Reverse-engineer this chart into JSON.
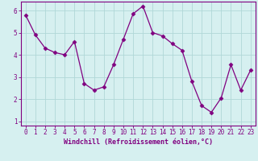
{
  "x": [
    0,
    1,
    2,
    3,
    4,
    5,
    6,
    7,
    8,
    9,
    10,
    11,
    12,
    13,
    14,
    15,
    16,
    17,
    18,
    19,
    20,
    21,
    22,
    23
  ],
  "y": [
    5.8,
    4.9,
    4.3,
    4.1,
    4.0,
    4.6,
    2.7,
    2.4,
    2.55,
    3.55,
    4.7,
    5.85,
    6.2,
    5.0,
    4.85,
    4.5,
    4.2,
    2.8,
    1.7,
    1.4,
    2.05,
    3.55,
    2.4,
    3.3
  ],
  "line_color": "#800080",
  "marker": "D",
  "marker_size": 2.5,
  "bg_color": "#d6f0f0",
  "grid_color": "#b0d8d8",
  "xlabel": "Windchill (Refroidissement éolien,°C)",
  "xlabel_color": "#800080",
  "tick_color": "#800080",
  "spine_color": "#800080",
  "xlim": [
    -0.5,
    23.5
  ],
  "ylim": [
    0.8,
    6.4
  ],
  "yticks": [
    1,
    2,
    3,
    4,
    5,
    6
  ],
  "xticks": [
    0,
    1,
    2,
    3,
    4,
    5,
    6,
    7,
    8,
    9,
    10,
    11,
    12,
    13,
    14,
    15,
    16,
    17,
    18,
    19,
    20,
    21,
    22,
    23
  ],
  "font_family": "monospace",
  "tick_fontsize": 5.5,
  "xlabel_fontsize": 6.0
}
